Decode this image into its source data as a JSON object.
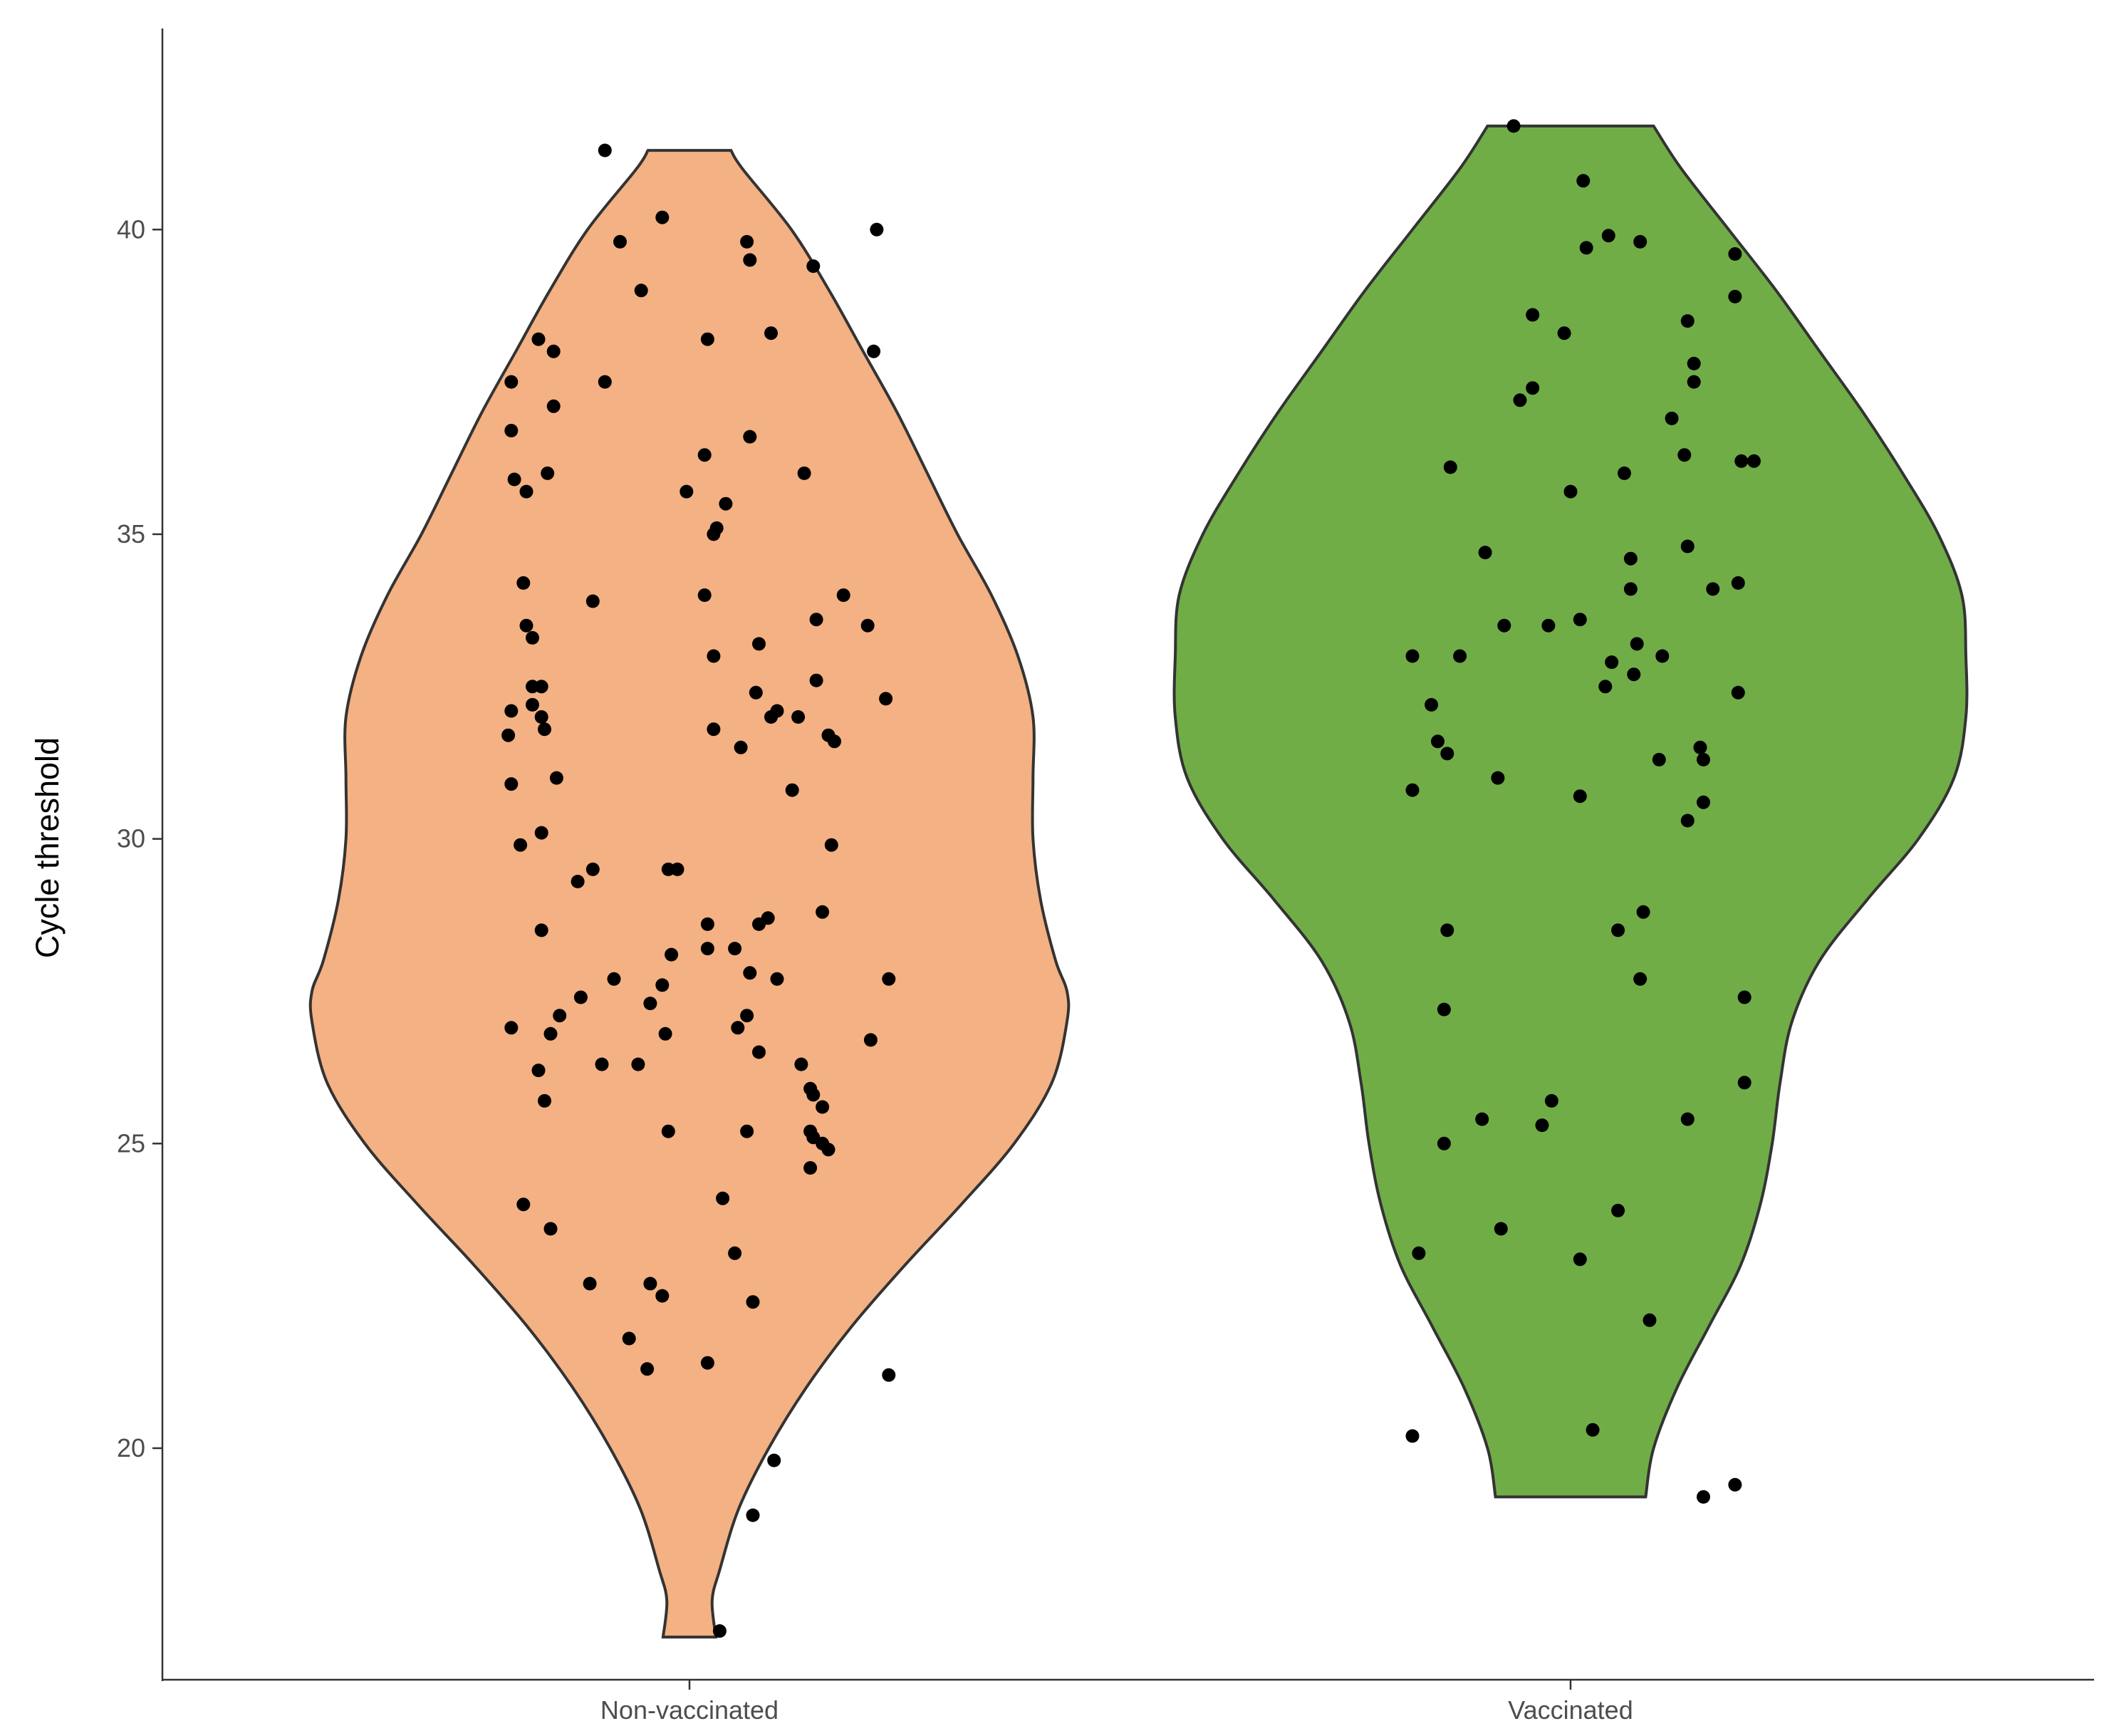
{
  "chart_data": {
    "type": "violin",
    "title": "",
    "xlabel": "",
    "ylabel": "Cycle threshold",
    "ylim": [
      16.2,
      43.3
    ],
    "yticks": [
      20,
      25,
      30,
      35,
      40
    ],
    "grid": false,
    "legend": "none",
    "categories": [
      "Non-vaccinated",
      "Vaccinated"
    ],
    "groups": [
      {
        "category": "Non-vaccinated",
        "fill": "#F4B183",
        "range": [
          16.9,
          41.3
        ],
        "density_profile": [
          [
            16.9,
            0.07
          ],
          [
            17.5,
            0.06
          ],
          [
            18.0,
            0.08
          ],
          [
            19.0,
            0.13
          ],
          [
            20.0,
            0.21
          ],
          [
            21.0,
            0.31
          ],
          [
            22.0,
            0.43
          ],
          [
            23.0,
            0.57
          ],
          [
            24.0,
            0.72
          ],
          [
            25.0,
            0.86
          ],
          [
            26.0,
            0.96
          ],
          [
            27.0,
            1.0
          ],
          [
            27.5,
            1.0
          ],
          [
            28.0,
            0.97
          ],
          [
            29.0,
            0.93
          ],
          [
            30.0,
            0.91
          ],
          [
            31.0,
            0.91
          ],
          [
            32.0,
            0.91
          ],
          [
            33.0,
            0.87
          ],
          [
            34.0,
            0.8
          ],
          [
            35.0,
            0.71
          ],
          [
            36.0,
            0.63
          ],
          [
            37.0,
            0.55
          ],
          [
            38.0,
            0.46
          ],
          [
            39.0,
            0.37
          ],
          [
            40.0,
            0.27
          ],
          [
            41.0,
            0.14
          ],
          [
            41.3,
            0.11
          ]
        ],
        "points": [
          {
            "x": 41.3,
            "j": -0.28
          },
          {
            "x": 40.2,
            "j": -0.09
          },
          {
            "x": 40.0,
            "j": 0.62
          },
          {
            "x": 39.8,
            "j": -0.23
          },
          {
            "x": 39.8,
            "j": 0.19
          },
          {
            "x": 39.5,
            "j": 0.2
          },
          {
            "x": 39.4,
            "j": 0.41
          },
          {
            "x": 39.0,
            "j": -0.16
          },
          {
            "x": 38.3,
            "j": 0.27
          },
          {
            "x": 38.2,
            "j": -0.5
          },
          {
            "x": 38.2,
            "j": 0.06
          },
          {
            "x": 38.0,
            "j": -0.45
          },
          {
            "x": 38.0,
            "j": 0.61
          },
          {
            "x": 37.5,
            "j": -0.59
          },
          {
            "x": 37.5,
            "j": -0.28
          },
          {
            "x": 37.1,
            "j": -0.45
          },
          {
            "x": 36.7,
            "j": -0.59
          },
          {
            "x": 36.6,
            "j": 0.2
          },
          {
            "x": 36.3,
            "j": 0.05
          },
          {
            "x": 36.0,
            "j": -0.47
          },
          {
            "x": 36.0,
            "j": 0.38
          },
          {
            "x": 35.9,
            "j": -0.58
          },
          {
            "x": 35.7,
            "j": -0.54
          },
          {
            "x": 35.7,
            "j": -0.01
          },
          {
            "x": 35.5,
            "j": 0.12
          },
          {
            "x": 35.1,
            "j": 0.09
          },
          {
            "x": 35.0,
            "j": 0.08
          },
          {
            "x": 34.2,
            "j": -0.55
          },
          {
            "x": 34.0,
            "j": 0.05
          },
          {
            "x": 34.0,
            "j": 0.51
          },
          {
            "x": 33.9,
            "j": -0.32
          },
          {
            "x": 33.6,
            "j": 0.42
          },
          {
            "x": 33.5,
            "j": -0.54
          },
          {
            "x": 33.5,
            "j": 0.59
          },
          {
            "x": 33.3,
            "j": -0.52
          },
          {
            "x": 33.2,
            "j": 0.23
          },
          {
            "x": 33.0,
            "j": 0.08
          },
          {
            "x": 32.6,
            "j": 0.42
          },
          {
            "x": 32.5,
            "j": -0.52
          },
          {
            "x": 32.5,
            "j": -0.49
          },
          {
            "x": 32.4,
            "j": 0.22
          },
          {
            "x": 32.3,
            "j": 0.65
          },
          {
            "x": 32.2,
            "j": -0.52
          },
          {
            "x": 32.1,
            "j": -0.59
          },
          {
            "x": 32.1,
            "j": 0.29
          },
          {
            "x": 32.0,
            "j": -0.49
          },
          {
            "x": 32.0,
            "j": 0.36
          },
          {
            "x": 32.0,
            "j": 0.27
          },
          {
            "x": 31.8,
            "j": -0.48
          },
          {
            "x": 31.8,
            "j": 0.08
          },
          {
            "x": 31.7,
            "j": -0.6
          },
          {
            "x": 31.7,
            "j": 0.46
          },
          {
            "x": 31.6,
            "j": 0.48
          },
          {
            "x": 31.5,
            "j": 0.17
          },
          {
            "x": 31.0,
            "j": -0.44
          },
          {
            "x": 30.9,
            "j": -0.59
          },
          {
            "x": 30.8,
            "j": 0.34
          },
          {
            "x": 30.1,
            "j": -0.49
          },
          {
            "x": 29.9,
            "j": -0.56
          },
          {
            "x": 29.9,
            "j": 0.47
          },
          {
            "x": 29.5,
            "j": -0.32
          },
          {
            "x": 29.5,
            "j": -0.07
          },
          {
            "x": 29.5,
            "j": -0.04
          },
          {
            "x": 29.3,
            "j": -0.37
          },
          {
            "x": 28.8,
            "j": 0.44
          },
          {
            "x": 28.7,
            "j": 0.26
          },
          {
            "x": 28.6,
            "j": 0.23
          },
          {
            "x": 28.6,
            "j": 0.06
          },
          {
            "x": 28.5,
            "j": -0.49
          },
          {
            "x": 28.2,
            "j": 0.06
          },
          {
            "x": 28.2,
            "j": 0.15
          },
          {
            "x": 28.1,
            "j": -0.06
          },
          {
            "x": 27.8,
            "j": 0.2
          },
          {
            "x": 27.7,
            "j": -0.25
          },
          {
            "x": 27.7,
            "j": 0.29
          },
          {
            "x": 27.7,
            "j": 0.66
          },
          {
            "x": 27.6,
            "j": -0.09
          },
          {
            "x": 27.4,
            "j": -0.36
          },
          {
            "x": 27.3,
            "j": -0.13
          },
          {
            "x": 27.1,
            "j": -0.43
          },
          {
            "x": 27.1,
            "j": 0.19
          },
          {
            "x": 26.9,
            "j": -0.59
          },
          {
            "x": 26.9,
            "j": 0.16
          },
          {
            "x": 26.8,
            "j": -0.46
          },
          {
            "x": 26.8,
            "j": -0.08
          },
          {
            "x": 26.7,
            "j": 0.6
          },
          {
            "x": 26.5,
            "j": 0.23
          },
          {
            "x": 26.3,
            "j": -0.29
          },
          {
            "x": 26.3,
            "j": -0.17
          },
          {
            "x": 26.3,
            "j": 0.37
          },
          {
            "x": 26.2,
            "j": -0.5
          },
          {
            "x": 25.9,
            "j": 0.4
          },
          {
            "x": 25.8,
            "j": 0.41
          },
          {
            "x": 25.7,
            "j": -0.48
          },
          {
            "x": 25.6,
            "j": 0.44
          },
          {
            "x": 25.2,
            "j": -0.07
          },
          {
            "x": 25.2,
            "j": 0.19
          },
          {
            "x": 25.2,
            "j": 0.4
          },
          {
            "x": 25.1,
            "j": 0.41
          },
          {
            "x": 25.0,
            "j": 0.44
          },
          {
            "x": 24.9,
            "j": 0.46
          },
          {
            "x": 24.6,
            "j": 0.4
          },
          {
            "x": 24.1,
            "j": 0.11
          },
          {
            "x": 24.0,
            "j": -0.55
          },
          {
            "x": 23.6,
            "j": -0.46
          },
          {
            "x": 23.2,
            "j": 0.15
          },
          {
            "x": 22.7,
            "j": -0.33
          },
          {
            "x": 22.7,
            "j": -0.13
          },
          {
            "x": 22.5,
            "j": -0.09
          },
          {
            "x": 22.4,
            "j": 0.21
          },
          {
            "x": 21.8,
            "j": -0.2
          },
          {
            "x": 21.4,
            "j": 0.06
          },
          {
            "x": 21.3,
            "j": -0.14
          },
          {
            "x": 21.2,
            "j": 0.66
          },
          {
            "x": 19.8,
            "j": 0.28
          },
          {
            "x": 18.9,
            "j": 0.21
          },
          {
            "x": 17.0,
            "j": 0.1
          }
        ]
      },
      {
        "category": "Vaccinated",
        "fill": "#70AD47",
        "range": [
          19.2,
          41.7
        ],
        "density_profile": [
          [
            19.2,
            0.19
          ],
          [
            20.0,
            0.21
          ],
          [
            21.0,
            0.27
          ],
          [
            22.0,
            0.35
          ],
          [
            23.0,
            0.43
          ],
          [
            24.0,
            0.48
          ],
          [
            25.0,
            0.51
          ],
          [
            26.0,
            0.53
          ],
          [
            27.0,
            0.56
          ],
          [
            28.0,
            0.63
          ],
          [
            29.0,
            0.75
          ],
          [
            30.0,
            0.88
          ],
          [
            31.0,
            0.97
          ],
          [
            32.0,
            1.0
          ],
          [
            33.0,
            1.0
          ],
          [
            34.0,
            0.99
          ],
          [
            35.0,
            0.93
          ],
          [
            36.0,
            0.84
          ],
          [
            37.0,
            0.74
          ],
          [
            38.0,
            0.63
          ],
          [
            39.0,
            0.52
          ],
          [
            40.0,
            0.4
          ],
          [
            41.0,
            0.28
          ],
          [
            41.7,
            0.21
          ]
        ],
        "points": [
          {
            "x": 41.7,
            "j": -0.18
          },
          {
            "x": 40.8,
            "j": 0.04
          },
          {
            "x": 39.9,
            "j": 0.12
          },
          {
            "x": 39.8,
            "j": 0.22
          },
          {
            "x": 39.7,
            "j": 0.05
          },
          {
            "x": 39.6,
            "j": 0.52
          },
          {
            "x": 38.9,
            "j": 0.52
          },
          {
            "x": 38.6,
            "j": -0.12
          },
          {
            "x": 38.5,
            "j": 0.37
          },
          {
            "x": 38.3,
            "j": -0.02
          },
          {
            "x": 37.8,
            "j": 0.39
          },
          {
            "x": 37.5,
            "j": 0.39
          },
          {
            "x": 37.4,
            "j": -0.12
          },
          {
            "x": 37.2,
            "j": -0.16
          },
          {
            "x": 36.9,
            "j": 0.32
          },
          {
            "x": 36.3,
            "j": 0.36
          },
          {
            "x": 36.2,
            "j": 0.54
          },
          {
            "x": 36.2,
            "j": 0.58
          },
          {
            "x": 36.1,
            "j": -0.38
          },
          {
            "x": 36.0,
            "j": 0.17
          },
          {
            "x": 35.7,
            "j": 0.0
          },
          {
            "x": 34.8,
            "j": 0.37
          },
          {
            "x": 34.7,
            "j": -0.27
          },
          {
            "x": 34.6,
            "j": 0.19
          },
          {
            "x": 34.2,
            "j": 0.53
          },
          {
            "x": 34.1,
            "j": 0.19
          },
          {
            "x": 34.1,
            "j": 0.45
          },
          {
            "x": 33.6,
            "j": 0.03
          },
          {
            "x": 33.5,
            "j": -0.21
          },
          {
            "x": 33.5,
            "j": -0.07
          },
          {
            "x": 33.2,
            "j": 0.21
          },
          {
            "x": 33.0,
            "j": -0.5
          },
          {
            "x": 33.0,
            "j": -0.35
          },
          {
            "x": 33.0,
            "j": 0.29
          },
          {
            "x": 32.9,
            "j": 0.13
          },
          {
            "x": 32.7,
            "j": 0.2
          },
          {
            "x": 32.5,
            "j": 0.11
          },
          {
            "x": 32.4,
            "j": 0.53
          },
          {
            "x": 32.2,
            "j": -0.44
          },
          {
            "x": 31.6,
            "j": -0.42
          },
          {
            "x": 31.5,
            "j": 0.41
          },
          {
            "x": 31.4,
            "j": -0.39
          },
          {
            "x": 31.3,
            "j": 0.42
          },
          {
            "x": 31.3,
            "j": 0.28
          },
          {
            "x": 31.0,
            "j": -0.23
          },
          {
            "x": 30.8,
            "j": -0.5
          },
          {
            "x": 30.7,
            "j": 0.03
          },
          {
            "x": 30.6,
            "j": 0.42
          },
          {
            "x": 30.3,
            "j": 0.37
          },
          {
            "x": 28.8,
            "j": 0.23
          },
          {
            "x": 28.5,
            "j": -0.39
          },
          {
            "x": 28.5,
            "j": 0.15
          },
          {
            "x": 27.7,
            "j": 0.22
          },
          {
            "x": 27.4,
            "j": 0.55
          },
          {
            "x": 27.2,
            "j": -0.4
          },
          {
            "x": 26.0,
            "j": 0.55
          },
          {
            "x": 25.7,
            "j": -0.06
          },
          {
            "x": 25.4,
            "j": -0.28
          },
          {
            "x": 25.4,
            "j": 0.37
          },
          {
            "x": 25.3,
            "j": -0.09
          },
          {
            "x": 25.0,
            "j": -0.4
          },
          {
            "x": 23.9,
            "j": 0.15
          },
          {
            "x": 23.6,
            "j": -0.22
          },
          {
            "x": 23.2,
            "j": -0.48
          },
          {
            "x": 23.1,
            "j": 0.03
          },
          {
            "x": 22.1,
            "j": 0.25
          },
          {
            "x": 20.3,
            "j": 0.07
          },
          {
            "x": 20.2,
            "j": -0.5
          },
          {
            "x": 19.4,
            "j": 0.52
          },
          {
            "x": 19.2,
            "j": 0.42
          }
        ]
      }
    ]
  }
}
